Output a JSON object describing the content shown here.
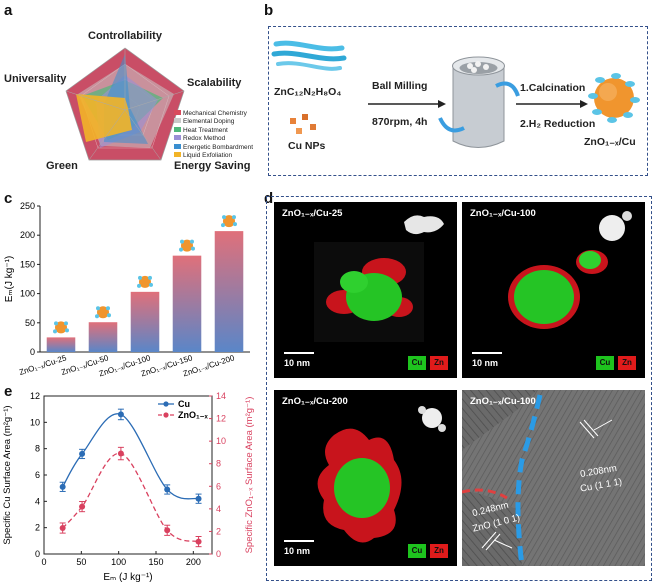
{
  "panel_labels": {
    "a": "a",
    "b": "b",
    "c": "c",
    "d": "d",
    "e": "e"
  },
  "panel_a": {
    "axes": [
      "Controllability",
      "Scalability",
      "Energy Saving",
      "Green",
      "Universality"
    ],
    "legend": [
      {
        "label": "Mechanical Chemistry",
        "color": "#d94a5c"
      },
      {
        "label": "Elemental Doping",
        "color": "#c9c9c9"
      },
      {
        "label": "Heat Treatment",
        "color": "#4fb87a"
      },
      {
        "label": "Redox Method",
        "color": "#9a8fd6"
      },
      {
        "label": "Energetic Bombardment",
        "color": "#3a8fd0"
      },
      {
        "label": "Liquid Exfoliation",
        "color": "#f2b428"
      }
    ]
  },
  "panel_b": {
    "precursor": "ZnC₁₂N₂H₈O₄",
    "cu_nps": "Cu NPs",
    "step1": "Ball Milling",
    "step1_cond": "870rpm, 4h",
    "step2a": "1.Calcination",
    "step2b": "2.H₂ Reduction",
    "product": "ZnO₁₋ₓ/Cu"
  },
  "chart_data": [
    {
      "type": "bar",
      "panel": "c",
      "categories": [
        "ZnO₁₋ₓ/Cu-25",
        "ZnO₁₋ₓ/Cu-50",
        "ZnO₁₋ₓ/Cu-100",
        "ZnO₁₋ₓ/Cu-150",
        "ZnO₁₋ₓ/Cu-200"
      ],
      "values": [
        25,
        51,
        103,
        165,
        207
      ],
      "ylabel": "Eₘ(J kg⁻¹)",
      "ylim": [
        0,
        250
      ],
      "yticks": [
        0,
        50,
        100,
        150,
        200,
        250
      ]
    },
    {
      "type": "line",
      "panel": "e",
      "x": [
        25,
        51,
        103,
        165,
        207
      ],
      "series": [
        {
          "name": "Cu",
          "values": [
            5.1,
            7.6,
            10.6,
            4.9,
            4.2
          ],
          "errors": [
            0.35,
            0.35,
            0.4,
            0.35,
            0.35
          ],
          "color": "#2b6cb5"
        },
        {
          "name": "ZnO₁₋ₓ",
          "values": [
            2.3,
            4.2,
            8.9,
            2.1,
            1.1
          ],
          "errors": [
            0.45,
            0.45,
            0.55,
            0.45,
            0.45
          ],
          "color": "#d9415f"
        }
      ],
      "xlabel": "Eₘ (J kg⁻¹)",
      "ylabel": "Specific Cu Surface Area (m²g⁻¹)",
      "y2label": "Specific ZnO₁₋ₓ Surface Area (m²g⁻¹)",
      "xlim": [
        0,
        225
      ],
      "xticks": [
        0,
        50,
        100,
        150,
        200
      ],
      "ylim": [
        0,
        12
      ],
      "yticks": [
        0,
        2,
        4,
        6,
        8,
        10,
        12
      ],
      "y2lim": [
        0,
        14
      ],
      "y2ticks": [
        0,
        2,
        4,
        6,
        8,
        10,
        12,
        14
      ]
    }
  ],
  "panel_d": {
    "tiles": [
      {
        "title": "ZnO₁₋ₓ/Cu-25",
        "scale": "10 nm",
        "cu": "Cu",
        "zn": "Zn"
      },
      {
        "title": "ZnO₁₋ₓ/Cu-100",
        "scale": "10 nm",
        "cu": "Cu",
        "zn": "Zn"
      },
      {
        "title": "ZnO₁₋ₓ/Cu-200",
        "scale": "10 nm",
        "cu": "Cu",
        "zn": "Zn"
      },
      {
        "title": "ZnO₁₋ₓ/Cu-100"
      }
    ],
    "hrtem": {
      "cu_d": "0.208nm",
      "cu_plane": "Cu (1 1 1)",
      "zno_d": "0.248nm",
      "zno_plane": "ZnO (1 0 1)"
    }
  }
}
